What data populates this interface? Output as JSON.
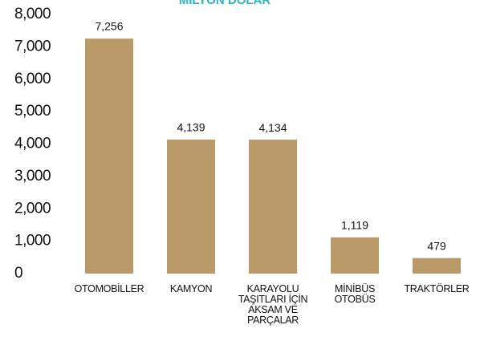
{
  "chart_data": {
    "type": "bar",
    "title": "MİLYON DOLAR",
    "categories": [
      "OTOMOBİLLER",
      "KAMYON",
      "KARAYOLU\nTAŞITLARI İÇİN\nAKSAM VE\nPARÇALAR",
      "MİNİBÜS\nOTOBÜS",
      "TRAKTÖRLER"
    ],
    "values": [
      7256,
      4139,
      4134,
      1119,
      479
    ],
    "value_labels": [
      "7,256",
      "4,139",
      "4,134",
      "1,119",
      "479"
    ],
    "color": "#b99a68",
    "ylim": [
      0,
      8000
    ],
    "yticks": [
      0,
      {
        "value": 1000,
        "label": "1,000"
      },
      {
        "value": 2000,
        "label": "2,000"
      },
      {
        "value": 3000,
        "label": "3,000"
      },
      {
        "value": 4000,
        "label": "4,000"
      },
      {
        "value": 5000,
        "label": "5,000"
      },
      {
        "value": 6000,
        "label": "6,000"
      },
      {
        "value": 7000,
        "label": "7,000"
      },
      {
        "value": 8000,
        "label": "8,000"
      }
    ],
    "grid": false
  }
}
